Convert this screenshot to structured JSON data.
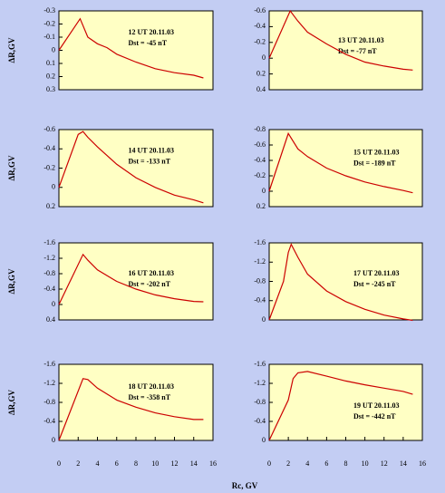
{
  "chart_data": [
    {
      "type": "line",
      "annotation": [
        "12 UT 20.11.03",
        "Dst = -45 nT"
      ],
      "ylabel": "ΔR,GV",
      "x": [
        0,
        2.2,
        3,
        4,
        5,
        6,
        8,
        10,
        12,
        14,
        15
      ],
      "series": [
        {
          "name": "12 UT",
          "color": "#cc0000",
          "values": [
            0,
            -0.24,
            -0.1,
            -0.05,
            -0.02,
            0.03,
            0.09,
            0.14,
            0.17,
            0.19,
            0.21
          ]
        }
      ],
      "xlim": [
        0,
        16
      ],
      "ylim": [
        0.3,
        -0.3
      ],
      "yticks": [
        -0.3,
        -0.2,
        -0.1,
        0,
        0.1,
        0.2,
        0.3
      ]
    },
    {
      "type": "line",
      "annotation": [
        "13 UT 20.11.03",
        "Dst = -77 nT"
      ],
      "x": [
        0,
        2.2,
        3,
        4,
        6,
        8,
        10,
        12,
        14,
        15
      ],
      "series": [
        {
          "name": "13 UT",
          "color": "#cc0000",
          "values": [
            0,
            -0.6,
            -0.47,
            -0.33,
            -0.18,
            -0.05,
            0.05,
            0.1,
            0.14,
            0.15
          ]
        }
      ],
      "xlim": [
        0,
        16
      ],
      "ylim": [
        0.4,
        -0.6
      ],
      "yticks": [
        -0.6,
        -0.4,
        -0.2,
        0,
        0.2,
        0.4
      ]
    },
    {
      "type": "line",
      "annotation": [
        "14 UT 20.11.03",
        "Dst = -133 nT"
      ],
      "ylabel": "ΔR,GV",
      "x": [
        0,
        2,
        2.5,
        3,
        4,
        6,
        8,
        10,
        12,
        14,
        15
      ],
      "series": [
        {
          "name": "14 UT",
          "color": "#cc0000",
          "values": [
            0,
            -0.55,
            -0.58,
            -0.52,
            -0.42,
            -0.24,
            -0.1,
            0,
            0.08,
            0.13,
            0.16
          ]
        }
      ],
      "xlim": [
        0,
        16
      ],
      "ylim": [
        0.2,
        -0.6
      ],
      "yticks": [
        -0.6,
        -0.4,
        -0.2,
        0,
        0.2
      ]
    },
    {
      "type": "line",
      "annotation": [
        "15 UT 20.11.03",
        "Dst = -189 nT"
      ],
      "x": [
        0,
        2,
        3,
        4,
        6,
        8,
        10,
        12,
        14,
        15
      ],
      "series": [
        {
          "name": "15 UT",
          "color": "#cc0000",
          "values": [
            0,
            -0.75,
            -0.55,
            -0.45,
            -0.3,
            -0.2,
            -0.12,
            -0.06,
            -0.01,
            0.02
          ]
        }
      ],
      "xlim": [
        0,
        16
      ],
      "ylim": [
        0.2,
        -0.8
      ],
      "yticks": [
        -0.8,
        -0.6,
        -0.4,
        -0.2,
        0,
        0.2
      ]
    },
    {
      "type": "line",
      "annotation": [
        "16 UT 20.11.03",
        "Dst = -202 nT"
      ],
      "ylabel": "ΔR,GV",
      "x": [
        0,
        2.5,
        3,
        4,
        6,
        8,
        10,
        12,
        14,
        15
      ],
      "series": [
        {
          "name": "16 UT",
          "color": "#cc0000",
          "values": [
            0,
            -1.3,
            -1.15,
            -0.9,
            -0.6,
            -0.4,
            -0.25,
            -0.15,
            -0.08,
            -0.07
          ]
        }
      ],
      "xlim": [
        0,
        16
      ],
      "ylim": [
        0.4,
        -1.6
      ],
      "yticks": [
        -1.6,
        -1.2,
        -0.8,
        -0.4,
        0,
        0.4
      ]
    },
    {
      "type": "line",
      "annotation": [
        "17 UT 20.11.03",
        "Dst = -245 nT"
      ],
      "x": [
        0,
        1.5,
        2,
        2.3,
        3,
        4,
        6,
        8,
        10,
        12,
        14,
        15
      ],
      "series": [
        {
          "name": "17 UT",
          "color": "#cc0000",
          "values": [
            0,
            -0.8,
            -1.4,
            -1.57,
            -1.3,
            -0.95,
            -0.6,
            -0.38,
            -0.22,
            -0.1,
            -0.02,
            0.01
          ]
        }
      ],
      "xlim": [
        0,
        16
      ],
      "ylim": [
        0,
        -1.6
      ],
      "yticks": [
        -1.6,
        -1.2,
        -0.8,
        -0.4,
        0
      ]
    },
    {
      "type": "line",
      "annotation": [
        "18 UT 20.11.03",
        "Dst = -358 nT"
      ],
      "ylabel": "ΔR,GV",
      "x": [
        0,
        2.5,
        3,
        4,
        6,
        8,
        10,
        12,
        14,
        15
      ],
      "series": [
        {
          "name": "18 UT",
          "color": "#cc0000",
          "values": [
            0,
            -1.3,
            -1.28,
            -1.1,
            -0.85,
            -0.7,
            -0.58,
            -0.5,
            -0.44,
            -0.44
          ]
        }
      ],
      "xlim": [
        0,
        16
      ],
      "ylim": [
        0,
        -1.6
      ],
      "yticks": [
        -1.6,
        -1.2,
        -0.8,
        -0.4,
        0
      ],
      "xticks": [
        0,
        2,
        4,
        6,
        8,
        10,
        12,
        14,
        16
      ]
    },
    {
      "type": "line",
      "annotation": [
        "19 UT 20.11.03",
        "Dst = -442 nT"
      ],
      "x": [
        0,
        2,
        2.5,
        3,
        4,
        6,
        8,
        10,
        12,
        14,
        15
      ],
      "series": [
        {
          "name": "19 UT",
          "color": "#cc0000",
          "values": [
            0,
            -0.85,
            -1.3,
            -1.42,
            -1.45,
            -1.35,
            -1.25,
            -1.17,
            -1.1,
            -1.03,
            -0.97
          ]
        }
      ],
      "xlim": [
        0,
        16
      ],
      "ylim": [
        0,
        -1.6
      ],
      "yticks": [
        -1.6,
        -1.2,
        -0.8,
        -0.4,
        0
      ],
      "xticks": [
        0,
        2,
        4,
        6,
        8,
        10,
        12,
        14,
        16
      ]
    }
  ],
  "figure_xlabel": "Rc, GV"
}
